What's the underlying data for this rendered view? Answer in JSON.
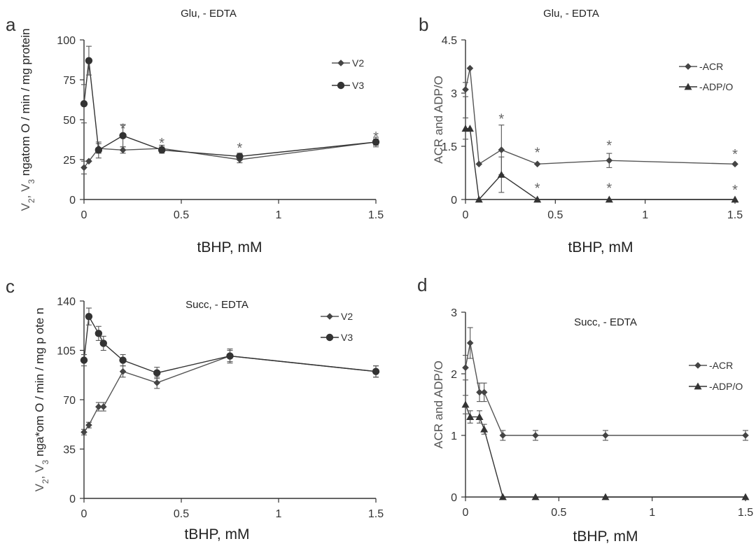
{
  "chart_data": [
    {
      "panel": "a",
      "type": "line",
      "title": "Glu, - EDTA",
      "xlabel": "tBHP, mM",
      "ylabel": "V2, V3 ngatom O / min / mg protein",
      "xlim": [
        0,
        1.5
      ],
      "ylim": [
        0,
        100
      ],
      "xticks": [
        0,
        0.5,
        1,
        1.5
      ],
      "xtick_labels": [
        "0",
        "0.5",
        "1",
        "1.5"
      ],
      "yticks": [
        0,
        25,
        50,
        75,
        100
      ],
      "ytick_labels": [
        "0",
        "25",
        "50",
        "75",
        "100"
      ],
      "legend_position": "top-right",
      "series": [
        {
          "name": "V2",
          "marker": "diamond",
          "x": [
            0,
            0.025,
            0.075,
            0.2,
            0.4,
            0.8,
            1.5
          ],
          "y": [
            20,
            24,
            32,
            31,
            32,
            25,
            36
          ],
          "err": [
            4,
            0,
            3,
            2,
            2,
            2,
            2
          ]
        },
        {
          "name": "V3",
          "marker": "circle",
          "x": [
            0,
            0.025,
            0.075,
            0.2,
            0.4,
            0.8,
            1.5
          ],
          "y": [
            60,
            87,
            31,
            40,
            31,
            27,
            36
          ],
          "err": [
            12,
            9,
            5,
            7,
            2,
            2,
            3
          ]
        }
      ],
      "annotations": [
        {
          "text": "*",
          "x": 0.2,
          "y": 45
        },
        {
          "text": "*",
          "x": 0.4,
          "y": 36
        },
        {
          "text": "*",
          "x": 0.8,
          "y": 33
        },
        {
          "text": "*",
          "x": 1.5,
          "y": 40
        }
      ]
    },
    {
      "panel": "b",
      "type": "line",
      "title": "Glu, - EDTA",
      "xlabel": "tBHP, mM",
      "ylabel": "ACR and ADP/O",
      "xlim": [
        0,
        1.5
      ],
      "ylim": [
        0,
        4.5
      ],
      "xticks": [
        0,
        0.5,
        1,
        1.5
      ],
      "xtick_labels": [
        "0",
        "0.5",
        "1",
        "1.5"
      ],
      "yticks": [
        0,
        1.5,
        3,
        4.5
      ],
      "ytick_labels": [
        "0",
        "1.5",
        "3",
        "4.5"
      ],
      "legend_position": "top-right",
      "series": [
        {
          "name": "-ACR",
          "marker": "diamond",
          "x": [
            0,
            0.025,
            0.075,
            0.2,
            0.4,
            0.8,
            1.5
          ],
          "y": [
            3.1,
            3.7,
            1.0,
            1.4,
            1.0,
            1.1,
            1.0
          ],
          "err": [
            0.2,
            0,
            0,
            0.7,
            0,
            0.2,
            0
          ]
        },
        {
          "name": "-ADP/O",
          "marker": "triangle",
          "x": [
            0,
            0.025,
            0.075,
            0.2,
            0.4,
            0.8,
            1.5
          ],
          "y": [
            2.0,
            2.0,
            0,
            0.7,
            0,
            0,
            0
          ],
          "err": [
            0.3,
            0,
            0,
            0.5,
            0,
            0,
            0
          ]
        }
      ],
      "annotations": [
        {
          "text": "*",
          "x": 0.2,
          "y": 2.3
        },
        {
          "text": "*",
          "x": 0.4,
          "y": 1.35
        },
        {
          "text": "*",
          "x": 0.8,
          "y": 1.55
        },
        {
          "text": "*",
          "x": 1.5,
          "y": 1.3
        },
        {
          "text": "*",
          "x": 0.4,
          "y": 0.35
        },
        {
          "text": "*",
          "x": 0.8,
          "y": 0.35
        },
        {
          "text": "*",
          "x": 1.5,
          "y": 0.3
        }
      ]
    },
    {
      "panel": "c",
      "type": "line",
      "title": "Succ, - EDTA",
      "xlabel": "tBHP, mM",
      "ylabel": "V2, V3 nga*om O / min / mg p ote n",
      "xlim": [
        0,
        1.5
      ],
      "ylim": [
        0,
        140
      ],
      "xticks": [
        0,
        0.5,
        1,
        1.5
      ],
      "xtick_labels": [
        "0",
        "0.5",
        "1",
        "1.5"
      ],
      "yticks": [
        0,
        35,
        70,
        105,
        140
      ],
      "ytick_labels": [
        "0",
        "35",
        "70",
        "105",
        "140"
      ],
      "legend_position": "top-right",
      "series": [
        {
          "name": "V2",
          "marker": "diamond",
          "x": [
            0,
            0.025,
            0.075,
            0.1,
            0.2,
            0.375,
            0.75,
            1.5
          ],
          "y": [
            47,
            52,
            65,
            65,
            90,
            82,
            101,
            90
          ],
          "err": [
            2,
            2,
            3,
            3,
            4,
            4,
            4,
            4
          ]
        },
        {
          "name": "V3",
          "marker": "circle",
          "x": [
            0,
            0.025,
            0.075,
            0.1,
            0.2,
            0.375,
            0.75,
            1.5
          ],
          "y": [
            98,
            129,
            117,
            110,
            98,
            89,
            101,
            90
          ],
          "err": [
            4,
            6,
            5,
            5,
            4,
            4,
            5,
            4
          ]
        }
      ],
      "annotations": []
    },
    {
      "panel": "d",
      "type": "line",
      "title": "Succ, - EDTA",
      "xlabel": "tBHP, mM",
      "ylabel": "ACR and ADP/O",
      "xlim": [
        0,
        1.5
      ],
      "ylim": [
        0,
        3
      ],
      "xticks": [
        0,
        0.5,
        1,
        1.5
      ],
      "xtick_labels": [
        "0",
        "0.5",
        "1",
        "1.5"
      ],
      "yticks": [
        0,
        1,
        2,
        3
      ],
      "ytick_labels": [
        "0",
        "1",
        "2",
        "3"
      ],
      "legend_position": "right",
      "series": [
        {
          "name": "-ACR",
          "marker": "diamond",
          "x": [
            0,
            0.025,
            0.075,
            0.1,
            0.2,
            0.375,
            0.75,
            1.5
          ],
          "y": [
            2.1,
            2.5,
            1.7,
            1.7,
            1.0,
            1.0,
            1.0,
            1.0
          ],
          "err": [
            0.2,
            0.25,
            0.15,
            0.15,
            0.08,
            0.08,
            0.08,
            0.08
          ]
        },
        {
          "name": "-ADP/O",
          "marker": "triangle",
          "x": [
            0,
            0.025,
            0.075,
            0.1,
            0.2,
            0.375,
            0.75,
            1.5
          ],
          "y": [
            1.5,
            1.3,
            1.3,
            1.1,
            0,
            0,
            0,
            0
          ],
          "err": [
            0.15,
            0.1,
            0.1,
            0.08,
            0,
            0,
            0,
            0
          ]
        }
      ],
      "annotations": []
    }
  ]
}
